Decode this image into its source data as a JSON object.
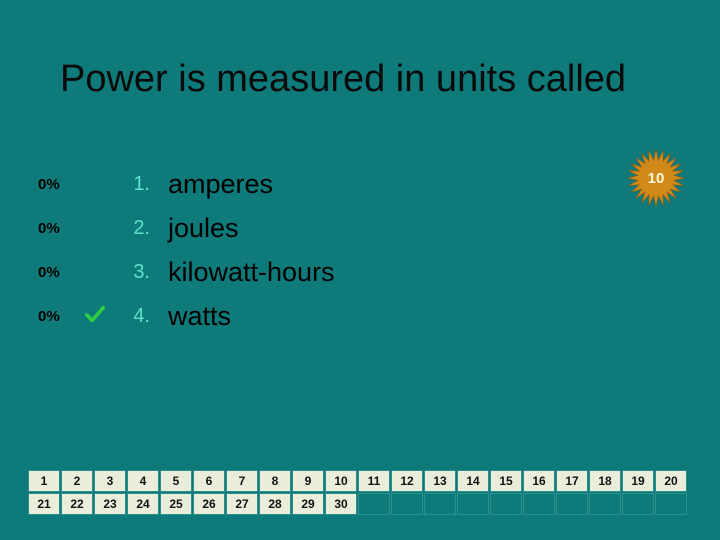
{
  "title": "Power is measured in units called",
  "options": [
    {
      "pct": "0%",
      "num": "1.",
      "text": "amperes",
      "correct": false
    },
    {
      "pct": "0%",
      "num": "2.",
      "text": "joules",
      "correct": false
    },
    {
      "pct": "0%",
      "num": "3.",
      "text": "kilowatt-hours",
      "correct": false
    },
    {
      "pct": "0%",
      "num": "4.",
      "text": "watts",
      "correct": true
    }
  ],
  "burst_number": "10",
  "grid": {
    "cols": 20,
    "rows": 2,
    "filled": 30
  },
  "colors": {
    "background": "#0e7a7a",
    "title": "#0a0a0a",
    "option_num": "#5fe0c8",
    "answer_text": "#000000",
    "cell_bg": "#e9eedb",
    "cell_border": "#2a8e8e",
    "check": "#2ecc40",
    "burst_fill": "#d18a1a",
    "burst_text": "#faf6d8"
  },
  "fonts": {
    "title_size": 38,
    "answer_size": 27,
    "num_size": 20,
    "pct_size": 15,
    "cell_size": 12,
    "burst_size": 15
  }
}
